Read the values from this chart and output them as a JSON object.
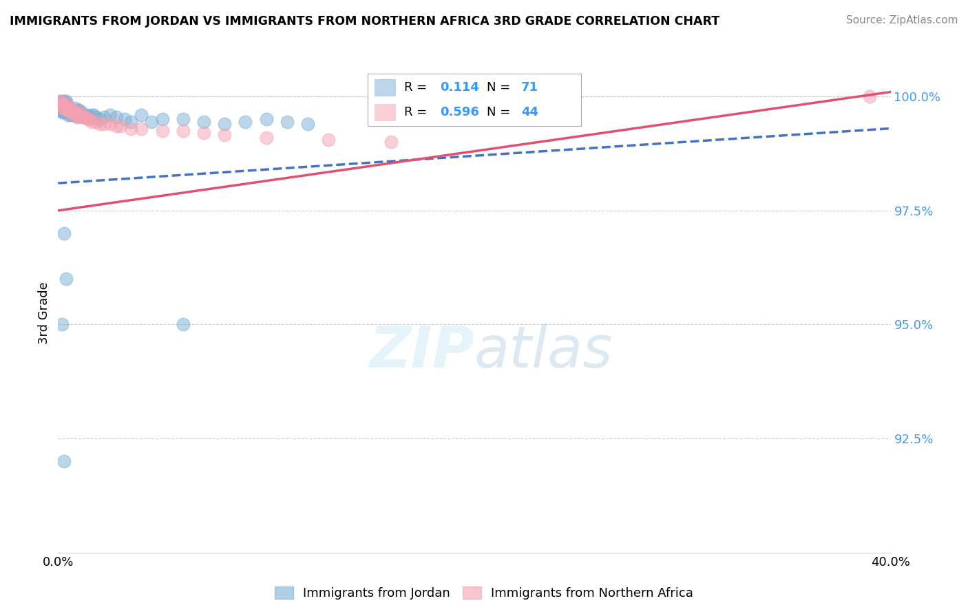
{
  "title": "IMMIGRANTS FROM JORDAN VS IMMIGRANTS FROM NORTHERN AFRICA 3RD GRADE CORRELATION CHART",
  "source": "Source: ZipAtlas.com",
  "xlabel_legend1": "Immigrants from Jordan",
  "xlabel_legend2": "Immigrants from Northern Africa",
  "ylabel": "3rd Grade",
  "xmin": 0.0,
  "xmax": 0.4,
  "ymin": 0.9,
  "ymax": 1.005,
  "yticks": [
    0.925,
    0.95,
    0.975,
    1.0
  ],
  "ytick_labels": [
    "92.5%",
    "95.0%",
    "97.5%",
    "100.0%"
  ],
  "xtick_labels": [
    "0.0%",
    "40.0%"
  ],
  "r1": 0.114,
  "n1": 71,
  "r2": 0.596,
  "n2": 44,
  "color_jordan": "#7bafd4",
  "color_jordan_line": "#4472C4",
  "color_africa": "#f4a0b0",
  "color_africa_line": "#E05070",
  "jordan_line_x0": 0.0,
  "jordan_line_y0": 0.981,
  "jordan_line_x1": 0.4,
  "jordan_line_y1": 0.993,
  "africa_line_x0": 0.0,
  "africa_line_y0": 0.975,
  "africa_line_x1": 0.4,
  "africa_line_y1": 1.001,
  "jordan_x": [
    0.001,
    0.001,
    0.001,
    0.001,
    0.001,
    0.002,
    0.002,
    0.002,
    0.002,
    0.002,
    0.002,
    0.003,
    0.003,
    0.003,
    0.003,
    0.003,
    0.003,
    0.004,
    0.004,
    0.004,
    0.004,
    0.004,
    0.005,
    0.005,
    0.005,
    0.005,
    0.006,
    0.006,
    0.006,
    0.006,
    0.007,
    0.007,
    0.007,
    0.008,
    0.008,
    0.009,
    0.009,
    0.01,
    0.01,
    0.01,
    0.011,
    0.011,
    0.012,
    0.012,
    0.013,
    0.014,
    0.015,
    0.016,
    0.017,
    0.018,
    0.02,
    0.022,
    0.025,
    0.028,
    0.032,
    0.035,
    0.04,
    0.045,
    0.05,
    0.06,
    0.07,
    0.08,
    0.09,
    0.1,
    0.11,
    0.12,
    0.002,
    0.003,
    0.004,
    0.06,
    0.003
  ],
  "jordan_y": [
    0.999,
    0.9985,
    0.998,
    0.9975,
    0.997,
    0.999,
    0.9985,
    0.998,
    0.9975,
    0.997,
    0.9965,
    0.999,
    0.9985,
    0.998,
    0.9975,
    0.997,
    0.9965,
    0.999,
    0.9985,
    0.998,
    0.9975,
    0.997,
    0.9975,
    0.997,
    0.9965,
    0.996,
    0.9975,
    0.997,
    0.9965,
    0.996,
    0.997,
    0.9965,
    0.996,
    0.9975,
    0.996,
    0.997,
    0.9955,
    0.997,
    0.9965,
    0.996,
    0.9965,
    0.996,
    0.996,
    0.9955,
    0.9955,
    0.996,
    0.9955,
    0.996,
    0.996,
    0.9955,
    0.995,
    0.9955,
    0.996,
    0.9955,
    0.995,
    0.9945,
    0.996,
    0.9945,
    0.995,
    0.995,
    0.9945,
    0.994,
    0.9945,
    0.995,
    0.9945,
    0.994,
    0.95,
    0.97,
    0.96,
    0.95,
    0.92
  ],
  "africa_x": [
    0.001,
    0.001,
    0.002,
    0.002,
    0.002,
    0.003,
    0.003,
    0.003,
    0.004,
    0.004,
    0.004,
    0.005,
    0.005,
    0.006,
    0.006,
    0.007,
    0.007,
    0.008,
    0.008,
    0.009,
    0.01,
    0.01,
    0.011,
    0.012,
    0.013,
    0.014,
    0.015,
    0.016,
    0.018,
    0.02,
    0.022,
    0.025,
    0.028,
    0.03,
    0.035,
    0.04,
    0.05,
    0.06,
    0.07,
    0.08,
    0.1,
    0.13,
    0.16,
    0.39
  ],
  "africa_y": [
    0.999,
    0.9985,
    0.9985,
    0.998,
    0.9975,
    0.9985,
    0.998,
    0.9975,
    0.998,
    0.9975,
    0.997,
    0.9975,
    0.997,
    0.9975,
    0.9965,
    0.997,
    0.9965,
    0.9965,
    0.996,
    0.996,
    0.9965,
    0.9955,
    0.996,
    0.9955,
    0.9955,
    0.995,
    0.995,
    0.9945,
    0.9945,
    0.994,
    0.994,
    0.994,
    0.9935,
    0.9935,
    0.993,
    0.993,
    0.9925,
    0.9925,
    0.992,
    0.9915,
    0.991,
    0.9905,
    0.99,
    1.0
  ]
}
